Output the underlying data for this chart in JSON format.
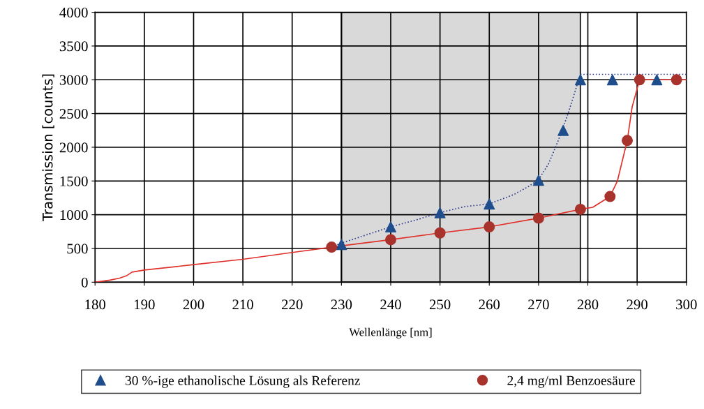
{
  "chart_data": {
    "type": "line",
    "xlabel": "Wellenlänge [nm]",
    "ylabel": "Transmission [counts]",
    "xlim": [
      180,
      300
    ],
    "xticks": [
      180,
      190,
      200,
      210,
      220,
      230,
      240,
      250,
      260,
      270,
      280,
      290,
      300
    ],
    "ylim": [
      0,
      4000
    ],
    "yticks": [
      0,
      500,
      1000,
      1500,
      2000,
      2500,
      3000,
      3500,
      4000
    ],
    "grid": true,
    "legend": "bottom",
    "bands": [
      {
        "axis": "x",
        "from": 230,
        "to": 278.5,
        "color": "#d9d9d9"
      }
    ],
    "series": [
      {
        "color": "#2e3b8c",
        "line_style": "dotted",
        "x": [
          228,
          230,
          235,
          240,
          245,
          250,
          255,
          260,
          265,
          268,
          270,
          272,
          274,
          276,
          278.5,
          300
        ],
        "values": [
          520,
          580,
          700,
          820,
          920,
          1030,
          1120,
          1160,
          1300,
          1420,
          1520,
          1750,
          2100,
          2500,
          3080,
          3080
        ]
      },
      {
        "color": "#e0302a",
        "line_style": "solid",
        "x": [
          180,
          183,
          185,
          186.5,
          187.5,
          190,
          200,
          210,
          220,
          228,
          240,
          250,
          260,
          270,
          278.5,
          281,
          284.5,
          286,
          287,
          288,
          289,
          290.5,
          300
        ],
        "values": [
          0,
          30,
          60,
          100,
          150,
          180,
          260,
          340,
          440,
          520,
          630,
          730,
          820,
          950,
          1080,
          1110,
          1270,
          1500,
          1800,
          2100,
          2600,
          3000,
          3000
        ]
      },
      {
        "type": "scatter",
        "name": "30 %-ige ethanolische Lösung als Referenz",
        "color": "#1f4e8c",
        "marker": "triangle",
        "x": [
          230,
          240,
          250,
          260,
          270,
          275,
          278.5,
          285,
          294
        ],
        "values": [
          560,
          820,
          1030,
          1160,
          1510,
          2250,
          3000,
          3000,
          3000
        ]
      },
      {
        "type": "scatter",
        "name": "2,4 mg/ml Benzoesäure",
        "color": "#a8322c",
        "marker": "circle",
        "x": [
          228,
          240,
          250,
          260,
          270,
          278.5,
          284.5,
          288,
          290.5,
          298
        ],
        "values": [
          520,
          630,
          730,
          820,
          950,
          1080,
          1270,
          2100,
          3000,
          3000
        ]
      }
    ]
  }
}
